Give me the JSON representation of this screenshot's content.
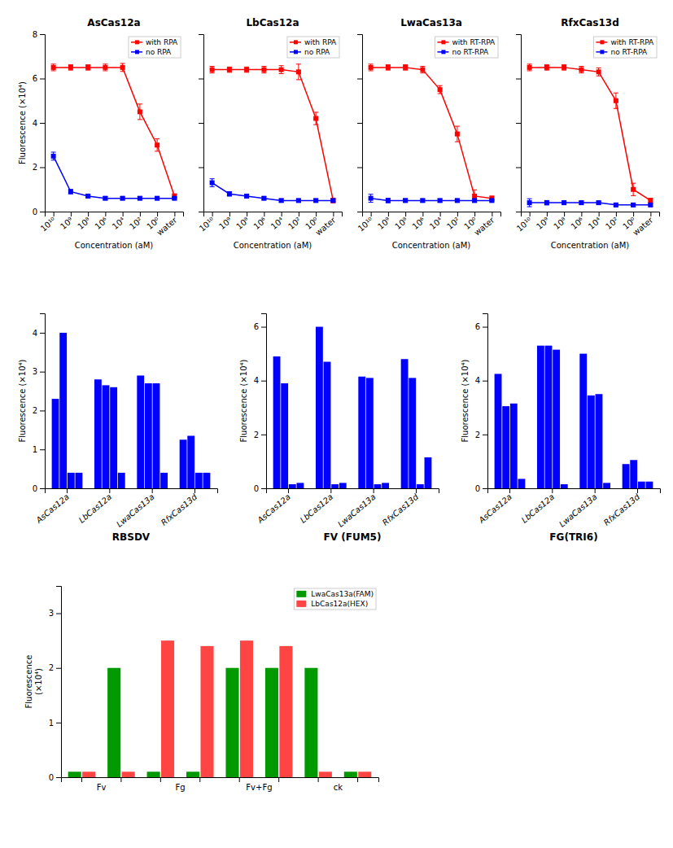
{
  "chart_data": [
    {
      "type": "line",
      "title": "AsCas12a",
      "categories": [
        "10¹⁰",
        "10⁹",
        "10⁸",
        "10⁶",
        "10⁴",
        "10²",
        "10⁰",
        "water"
      ],
      "x_label": "Concentration (aM)",
      "y_label": "Fluorescence (×10⁴)",
      "ylim": [
        0,
        8
      ],
      "yticks": [
        0,
        2,
        4,
        6,
        8
      ],
      "legend": "upper right",
      "series": [
        {
          "name": "with RPA",
          "color": "red",
          "marker": "square",
          "values": [
            6.5,
            6.5,
            6.5,
            6.5,
            6.5,
            4.5,
            3.0,
            0.7
          ],
          "errors": [
            0.15,
            0.12,
            0.12,
            0.15,
            0.18,
            0.35,
            0.28,
            0.1
          ]
        },
        {
          "name": "no RPA",
          "color": "blue",
          "marker": "square",
          "values": [
            2.5,
            0.9,
            0.7,
            0.6,
            0.6,
            0.6,
            0.6,
            0.6
          ],
          "errors": [
            0.18,
            0.1,
            0.08,
            0.07,
            0.07,
            0.07,
            0.07,
            0.05
          ]
        }
      ]
    },
    {
      "type": "line",
      "title": "LbCas12a",
      "categories": [
        "10¹⁰",
        "10⁹",
        "10⁸",
        "10⁶",
        "10⁴",
        "10²",
        "10⁰",
        "water"
      ],
      "x_label": "Concentration (aM)",
      "ylim": [
        0,
        8
      ],
      "yticks": [
        0,
        2,
        4,
        6,
        8
      ],
      "tick_labels": "x",
      "legend": "upper right",
      "series": [
        {
          "name": "with RPA",
          "color": "red",
          "marker": "square",
          "values": [
            6.4,
            6.4,
            6.4,
            6.4,
            6.4,
            6.3,
            4.2,
            0.5
          ],
          "errors": [
            0.15,
            0.12,
            0.12,
            0.15,
            0.18,
            0.35,
            0.28,
            0.1
          ]
        },
        {
          "name": "no RPA",
          "color": "blue",
          "marker": "square",
          "values": [
            1.3,
            0.8,
            0.7,
            0.6,
            0.5,
            0.5,
            0.5,
            0.5
          ],
          "errors": [
            0.18,
            0.1,
            0.08,
            0.07,
            0.07,
            0.07,
            0.07,
            0.05
          ]
        }
      ]
    },
    {
      "type": "line",
      "title": "LwaCas13a",
      "categories": [
        "10¹⁰",
        "10⁹",
        "10⁸",
        "10⁶",
        "10⁴",
        "10²",
        "10⁰",
        "water"
      ],
      "x_label": "Concentration (aM)",
      "ylim": [
        0,
        8
      ],
      "yticks": [
        0,
        2,
        4,
        6,
        8
      ],
      "tick_labels": "x",
      "legend": "upper right",
      "series": [
        {
          "name": "with RT-RPA",
          "color": "red",
          "marker": "square",
          "values": [
            6.5,
            6.5,
            6.5,
            6.4,
            5.5,
            3.5,
            0.7,
            0.6
          ],
          "errors": [
            0.15,
            0.12,
            0.12,
            0.15,
            0.18,
            0.35,
            0.28,
            0.1
          ]
        },
        {
          "name": "no RT-RPA",
          "color": "blue",
          "marker": "square",
          "values": [
            0.6,
            0.5,
            0.5,
            0.5,
            0.5,
            0.5,
            0.5,
            0.5
          ],
          "errors": [
            0.18,
            0.1,
            0.08,
            0.07,
            0.07,
            0.07,
            0.07,
            0.05
          ]
        }
      ]
    },
    {
      "type": "line",
      "title": "RfxCas13d",
      "categories": [
        "10¹⁰",
        "10⁹",
        "10⁸",
        "10⁶",
        "10⁴",
        "10²",
        "10⁰",
        "water"
      ],
      "x_label": "Concentration (aM)",
      "ylim": [
        0,
        8
      ],
      "yticks": [
        0,
        2,
        4,
        6,
        8
      ],
      "tick_labels": "x",
      "legend": "upper right",
      "series": [
        {
          "name": "with RT-RPA",
          "color": "red",
          "marker": "square",
          "values": [
            6.5,
            6.5,
            6.5,
            6.4,
            6.3,
            5.0,
            1.0,
            0.5
          ],
          "errors": [
            0.15,
            0.12,
            0.12,
            0.15,
            0.18,
            0.35,
            0.28,
            0.1
          ]
        },
        {
          "name": "no RT-RPA",
          "color": "blue",
          "marker": "square",
          "values": [
            0.4,
            0.4,
            0.4,
            0.4,
            0.4,
            0.3,
            0.3,
            0.3
          ],
          "errors": [
            0.18,
            0.1,
            0.08,
            0.07,
            0.07,
            0.07,
            0.07,
            0.05
          ]
        }
      ]
    },
    {
      "type": "bar",
      "x_label": "RBSDV",
      "y_label": "Fluorescence (×10⁴)",
      "categories": [
        "AsCas12a",
        "LbCas12a",
        "LwaCas13a",
        "RfxCas13d"
      ],
      "ylim": [
        0,
        4.5
      ],
      "yticks": [
        0,
        1,
        2,
        3,
        4
      ],
      "series": [
        {
          "color": "#0000FF",
          "values": [
            2.3,
            2.8,
            2.9,
            1.25
          ]
        },
        {
          "color": "#0000FF",
          "values": [
            4.0,
            2.65,
            2.7,
            1.35
          ]
        },
        {
          "color": "#0000FF",
          "values": [
            0.4,
            2.6,
            2.7,
            0.4
          ]
        },
        {
          "color": "#0000FF",
          "values": [
            0.4,
            0.4,
            0.4,
            0.4
          ]
        }
      ]
    },
    {
      "type": "bar",
      "x_label": "FV (FUM5)",
      "y_label": "Fluorescence (×10⁴)",
      "categories": [
        "AsCas12a",
        "LbCas12a",
        "LwaCas13a",
        "RfxCas13d"
      ],
      "ylim": [
        0,
        6.5
      ],
      "yticks": [
        0,
        2,
        4,
        6
      ],
      "series": [
        {
          "color": "#0000FF",
          "values": [
            4.9,
            6.0,
            4.15,
            4.8
          ]
        },
        {
          "color": "#0000FF",
          "values": [
            3.9,
            4.7,
            4.1,
            4.1
          ]
        },
        {
          "color": "#0000FF",
          "values": [
            0.15,
            0.15,
            0.15,
            0.15
          ]
        },
        {
          "color": "#0000FF",
          "values": [
            0.2,
            0.2,
            0.2,
            1.15
          ]
        }
      ]
    },
    {
      "type": "bar",
      "x_label": "FG(TRI6)",
      "y_label": "Fluorescence (×10⁴)",
      "categories": [
        "AsCas12a",
        "LbCas12a",
        "LwaCas13a",
        "RfxCas13d"
      ],
      "ylim": [
        0,
        6.5
      ],
      "yticks": [
        0,
        2,
        4,
        6
      ],
      "series": [
        {
          "color": "#0000FF",
          "values": [
            4.25,
            5.3,
            5.0,
            0.9
          ]
        },
        {
          "color": "#0000FF",
          "values": [
            3.05,
            5.3,
            3.45,
            1.05
          ]
        },
        {
          "color": "#0000FF",
          "values": [
            3.15,
            5.15,
            3.5,
            0.25
          ]
        },
        {
          "color": "#0000FF",
          "values": [
            0.35,
            0.15,
            0.2,
            0.25
          ]
        }
      ]
    },
    {
      "type": "bar",
      "y_label": "Fluorescence\n(×10⁴)",
      "categories": [
        "Fv",
        null,
        "Fg",
        null,
        "Fv+Fg",
        null,
        "ck",
        null
      ],
      "ylim": [
        0,
        3.5
      ],
      "yticks": [
        0,
        1,
        2,
        3
      ],
      "legend": "upper right",
      "series": [
        {
          "name": "LwaCas13a(FAM)",
          "color": "#009900",
          "values": [
            0.1,
            2.0,
            0.1,
            0.1,
            2.0,
            2.0,
            2.0,
            0.1
          ]
        },
        {
          "name": "LbCas12a(HEX)",
          "color": "#FF4444",
          "values": [
            0.1,
            0.1,
            2.5,
            2.4,
            2.5,
            2.4,
            0.1,
            0.1
          ]
        }
      ]
    }
  ]
}
